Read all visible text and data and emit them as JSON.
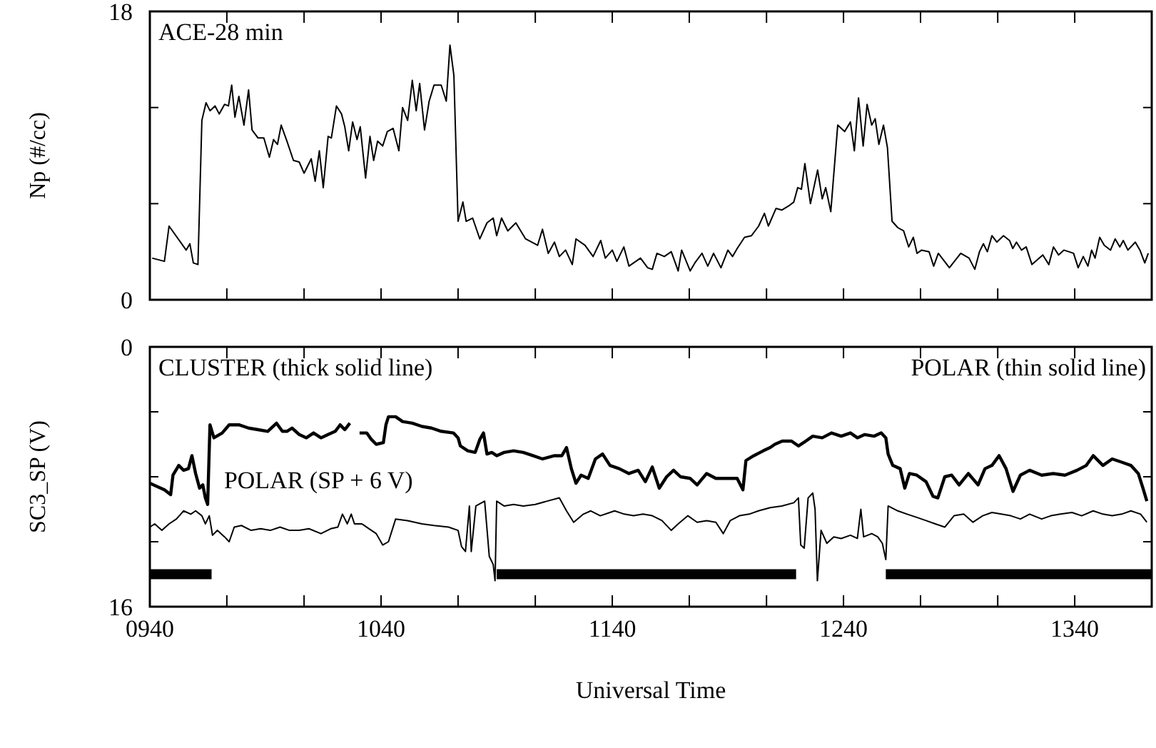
{
  "chart_data": [
    {
      "type": "line",
      "ylabel": "Np (#/cc)",
      "annotations": [
        "ACE-28 min"
      ],
      "x": [
        941,
        946.3,
        948.3,
        955.7,
        957.3,
        958.8,
        960.8,
        962.5,
        964.3,
        966,
        968.2,
        970,
        972.3,
        974,
        975.4,
        976.8,
        978.5,
        980.7,
        982.7,
        984.2,
        986.8,
        989.3,
        991.7,
        993.5,
        995.2,
        996.8,
        999.3,
        1002.1,
        1004.6,
        1006.7,
        1009.8,
        1011.5,
        1013.3,
        1015,
        1017.1,
        1018.5,
        1020.7,
        1022.9,
        1024.3,
        1026,
        1027.7,
        1029.6,
        1031,
        1033.3,
        1035.2,
        1036.8,
        1038.5,
        1040.7,
        1042.7,
        1045.2,
        1047.7,
        1049.3,
        1051.5,
        1053.5,
        1055.2,
        1056.7,
        1058.8,
        1060.8,
        1062.9,
        1066,
        1068.2,
        1069.8,
        1071.5,
        1073.3,
        1075.4,
        1076.8,
        1079.6,
        1082.7,
        1085.8,
        1088.5,
        1090,
        1092.1,
        1094.8,
        1098.3,
        1102.5,
        1107.7,
        1109.8,
        1112.3,
        1115,
        1117.1,
        1119.8,
        1122.7,
        1124.3,
        1128.2,
        1131.7,
        1135,
        1137,
        1140,
        1142,
        1145,
        1147.2,
        1152.2,
        1155.3,
        1157.3,
        1159.3,
        1162.5,
        1165.5,
        1168.5,
        1170,
        1173.7,
        1175.7,
        1178.8,
        1181.3,
        1183.8,
        1187,
        1190,
        1192,
        1194,
        1197.2,
        1200.2,
        1203.3,
        1205.8,
        1207.5,
        1210.8,
        1213.3,
        1216.7,
        1218.5,
        1220.2,
        1221.8,
        1223.3,
        1225.7,
        1228.8,
        1230.8,
        1232.3,
        1234.5,
        1237.5,
        1240.5,
        1243,
        1244.7,
        1246.5,
        1248.5,
        1250.2,
        1252.2,
        1253.7,
        1255.3,
        1257.3,
        1259,
        1261,
        1263.5,
        1266,
        1268.2,
        1270.2,
        1271.8,
        1273.8,
        1277,
        1279,
        1281,
        1285.8,
        1290.7,
        1294.3,
        1296.8,
        1298.8,
        1300.5,
        1302.2,
        1304.2,
        1306.3,
        1309.2,
        1311.8,
        1313.2,
        1314.8,
        1317,
        1319,
        1321.5,
        1326.2,
        1328.8,
        1330.8,
        1333,
        1335.3,
        1339.5,
        1341.5,
        1343.7,
        1345.7,
        1347.3,
        1348.8,
        1350.8,
        1352.8,
        1355.5,
        1357.5,
        1359.5,
        1361,
        1363,
        1366.2,
        1368.2,
        1370.3,
        1371.8
      ],
      "values": [
        2.6,
        2.4,
        4.6,
        3.1,
        3.5,
        2.3,
        2.2,
        11.2,
        12.3,
        11.8,
        12.1,
        11.6,
        12.2,
        12.1,
        13.4,
        11.4,
        12.7,
        10.9,
        13.1,
        10.6,
        10.1,
        10.1,
        8.9,
        10,
        9.7,
        10.9,
        9.9,
        8.7,
        8.6,
        7.9,
        8.8,
        7.4,
        9.3,
        7,
        10.2,
        10.1,
        12.1,
        11.6,
        10.8,
        9.3,
        11.1,
        10,
        10.8,
        7.6,
        10.2,
        8.7,
        9.9,
        9.6,
        10.5,
        10.7,
        9.3,
        12,
        11.2,
        13.7,
        11.8,
        13.5,
        10.6,
        12.4,
        13.4,
        13.4,
        12.4,
        15.9,
        14,
        4.9,
        6.1,
        4.9,
        5.1,
        3.8,
        4.8,
        5.1,
        4,
        5.1,
        4.3,
        4.8,
        3.8,
        3.4,
        4.4,
        2.9,
        3.6,
        2.7,
        3.1,
        2.2,
        3.8,
        3.4,
        2.7,
        3.7,
        2.6,
        3.1,
        2.4,
        3.3,
        2.1,
        2.6,
        2,
        1.9,
        2.9,
        2.7,
        3,
        1.8,
        3.1,
        1.8,
        2.3,
        2.9,
        2.1,
        2.9,
        2,
        3.1,
        2.7,
        3.2,
        3.9,
        4,
        4.6,
        5.4,
        4.6,
        5.7,
        5.6,
        5.9,
        6.1,
        7,
        6.9,
        8.5,
        6,
        8.1,
        6.3,
        7,
        5.5,
        10.9,
        10.5,
        11.1,
        9.3,
        12.6,
        9.6,
        12.2,
        10.9,
        11.3,
        9.7,
        10.9,
        9.5,
        4.9,
        4.5,
        4.3,
        3.3,
        3.9,
        2.9,
        3.1,
        3,
        2.1,
        2.9,
        2,
        2.9,
        2.6,
        1.9,
        3,
        3.5,
        3,
        4,
        3.6,
        4,
        3.7,
        3.2,
        3.6,
        3.1,
        3.3,
        2.2,
        2.8,
        2.2,
        3.3,
        2.8,
        3.1,
        2.9,
        2,
        2.7,
        2.1,
        3.1,
        2.6,
        3.9,
        3.4,
        3.1,
        3.8,
        3.3,
        3.7,
        3.1,
        3.6,
        3.1,
        2.3,
        2.9
      ],
      "color": "#000000",
      "xlim": [
        940,
        1373.3
      ],
      "xticks": [
        {
          "value": 940,
          "label": null
        },
        {
          "value": 973.3,
          "label": null
        },
        {
          "value": 1006.7,
          "label": null
        },
        {
          "value": 1040,
          "label": null
        },
        {
          "value": 1073.3,
          "label": null
        },
        {
          "value": 1106.7,
          "label": null
        },
        {
          "value": 1140,
          "label": null
        },
        {
          "value": 1173.3,
          "label": null
        },
        {
          "value": 1206.7,
          "label": null
        },
        {
          "value": 1240,
          "label": null
        },
        {
          "value": 1273.3,
          "label": null
        },
        {
          "value": 1306.7,
          "label": null
        },
        {
          "value": 1340,
          "label": null
        }
      ],
      "ylim": [
        0,
        18
      ],
      "yticks": [
        0,
        {
          "value": 6,
          "label": null
        },
        {
          "value": 12,
          "label": null
        },
        18
      ],
      "tick_labels": "y"
    },
    {
      "type": "line",
      "ylabel": "SC3_SP (V)",
      "xlabel": "Universal Time",
      "annotations": [
        "CLUSTER (thick solid line)",
        "POLAR (thin solid line)",
        "POLAR (SP + 6 V)"
      ],
      "series": [
        {
          "color": "#000000",
          "x": [
            940,
            943.2,
            946.3,
            949,
            950,
            952.5,
            954.6,
            956.7,
            958.2,
            959.8,
            961.5,
            962.9,
            964,
            965,
            966,
            967.7,
            971.3,
            974.3,
            978.5,
            982.7,
            986.8,
            991,
            994.8,
            997.3,
            999.3,
            1001.5,
            1004.6,
            1007.7,
            1010.8,
            1014,
            1017.1,
            1020.2,
            1022.3,
            1024.3,
            1026.5,
            1028.3,
            1030.7,
            1033.8,
            1035.8,
            1037.9,
            1041,
            1042.1,
            1043.2,
            1046.3,
            1049.3,
            1053.5,
            1057.7,
            1061.8,
            1066,
            1071.3,
            1073.3,
            1074.3,
            1077.5,
            1080.7,
            1082.7,
            1084.3,
            1085.8,
            1087.9,
            1090,
            1093.2,
            1097.3,
            1101.5,
            1105.7,
            1109.8,
            1115,
            1118.2,
            1120.2,
            1122.3,
            1124.3,
            1126.5,
            1129.6,
            1132.7,
            1135.8,
            1139,
            1143,
            1147.2,
            1151.2,
            1154.3,
            1157.3,
            1160.3,
            1163.5,
            1166.5,
            1169.5,
            1173.7,
            1176.7,
            1180.8,
            1184.8,
            1190,
            1194,
            1196.5,
            1197.8,
            1201.2,
            1205.3,
            1208.3,
            1210.3,
            1213.5,
            1217.5,
            1220.5,
            1222.7,
            1226.7,
            1230.8,
            1234.8,
            1239,
            1243,
            1246,
            1249.2,
            1253.2,
            1256.3,
            1258.3,
            1259.3,
            1261.3,
            1264.5,
            1266.5,
            1268.5,
            1271.7,
            1275.7,
            1278.7,
            1280.8,
            1283.8,
            1286.8,
            1290,
            1294,
            1298.2,
            1301.2,
            1304.2,
            1307.3,
            1310.3,
            1313.3,
            1316.5,
            1320.5,
            1325.7,
            1330.7,
            1335.8,
            1341,
            1345,
            1348,
            1352.2,
            1356.2,
            1360.3,
            1364.3,
            1367.5,
            1369.5,
            1371.2
          ],
          "values": [
            8.4,
            8.6,
            8.8,
            9.1,
            7.9,
            7.3,
            7.6,
            7.5,
            6.7,
            7.8,
            8.7,
            8.5,
            9.3,
            9.7,
            4.8,
            5.6,
            5.3,
            4.8,
            4.8,
            5,
            5.1,
            5.2,
            4.7,
            5.2,
            5.2,
            5,
            5.4,
            5.6,
            5.3,
            5.6,
            5.4,
            5.2,
            4.8,
            5.1,
            4.7,
            null,
            5.3,
            5.3,
            5.7,
            6,
            5.9,
            4.8,
            4.3,
            4.3,
            4.6,
            4.7,
            4.9,
            5,
            5.2,
            5.3,
            5.6,
            6.1,
            6.4,
            6.5,
            5.7,
            5.3,
            6.6,
            6.5,
            6.7,
            6.5,
            6.4,
            6.5,
            6.7,
            6.9,
            6.7,
            6.7,
            6.2,
            7.5,
            8.4,
            7.9,
            8.1,
            6.9,
            6.6,
            7.3,
            7.5,
            7.8,
            7.6,
            8.3,
            7.4,
            8.7,
            8,
            7.6,
            8,
            8.1,
            8.5,
            7.8,
            8.1,
            8.1,
            8.1,
            8.8,
            7,
            6.7,
            6.4,
            6.2,
            6,
            5.8,
            5.8,
            6.1,
            5.9,
            5.5,
            5.6,
            5.3,
            5.5,
            5.3,
            5.6,
            5.4,
            5.5,
            5.3,
            5.6,
            6.6,
            7.3,
            7.5,
            8.7,
            7.8,
            7.9,
            8.3,
            9.2,
            9.3,
            8,
            7.9,
            8.5,
            7.8,
            8.5,
            7.5,
            7.3,
            6.7,
            7.5,
            8.9,
            7.9,
            7.6,
            7.9,
            7.8,
            7.9,
            7.6,
            7.3,
            6.7,
            7.3,
            6.9,
            7.1,
            7.3,
            7.8,
            8.7,
            9.5
          ]
        },
        {
          "color": "#000000",
          "x": [
            940,
            942.1,
            945.2,
            948.3,
            951.5,
            954.6,
            957.7,
            959.8,
            962.5,
            964,
            965.7,
            967.1,
            969.2,
            972.3,
            974.3,
            976.5,
            979.6,
            983.8,
            987.9,
            992.1,
            996.3,
            1000.4,
            1004.6,
            1008.8,
            1014,
            1018.2,
            1021.3,
            1023.3,
            1025.4,
            1027.1,
            1028.5,
            1031.7,
            1034.8,
            1037.9,
            1040.7,
            1043.2,
            1046.3,
            1051.5,
            1057.7,
            1062.9,
            1069.2,
            1073.3,
            1074.8,
            1076.5,
            1078.2,
            1079,
            1081,
            1084.8,
            1086.8,
            1088.5,
            1089.3,
            1090,
            1093.2,
            1097.3,
            1101.5,
            1106.7,
            1111.8,
            1117.1,
            1120.2,
            1123.3,
            1127.5,
            1130.7,
            1134.8,
            1139,
            1141,
            1145.2,
            1149.2,
            1153.3,
            1157.3,
            1161.5,
            1165.5,
            1168.5,
            1172.7,
            1176.7,
            1180.8,
            1184.8,
            1188,
            1191,
            1195,
            1199.2,
            1203.2,
            1208.3,
            1213.3,
            1218.5,
            1220.5,
            1221.5,
            1223,
            1224.7,
            1226.7,
            1227.7,
            1228.7,
            1230.3,
            1232.8,
            1235.8,
            1239,
            1243,
            1246,
            1247.5,
            1248.7,
            1252.2,
            1254.8,
            1256.8,
            1258.3,
            1259.3,
            1263.5,
            1267.5,
            1271.7,
            1275.7,
            1279.7,
            1283.8,
            1287.8,
            1292,
            1296,
            1300.2,
            1304.2,
            1308.3,
            1312.3,
            1316.5,
            1320.5,
            1325.7,
            1329.7,
            1333.8,
            1338.8,
            1343,
            1348,
            1352.2,
            1356.2,
            1360.3,
            1364.3,
            1368.5,
            1371.2
          ],
          "values": [
            11.1,
            10.9,
            11.3,
            10.9,
            10.6,
            10.1,
            10.3,
            10.1,
            10.4,
            10.9,
            10.4,
            11.6,
            11.3,
            11.7,
            12,
            11.1,
            11,
            11.3,
            11.2,
            11.3,
            11.1,
            11.3,
            11.3,
            11.2,
            11.5,
            11.2,
            11.1,
            10.3,
            10.9,
            10.3,
            10.9,
            10.9,
            11.2,
            11.5,
            12.2,
            12,
            10.6,
            10.7,
            10.9,
            11,
            11.1,
            11.3,
            12.3,
            12.6,
            9.8,
            12.6,
            9.8,
            9.5,
            12.9,
            13.4,
            14.4,
            9.5,
            9.8,
            9.7,
            9.8,
            9.7,
            9.5,
            9.3,
            10.1,
            10.8,
            10.3,
            10.1,
            10.4,
            10.2,
            10.1,
            10.3,
            10.4,
            10.3,
            10.4,
            10.7,
            11.3,
            10.9,
            10.4,
            10.8,
            10.7,
            10.8,
            11.5,
            10.7,
            10.4,
            10.3,
            10.1,
            9.9,
            9.8,
            9.6,
            9.3,
            12.2,
            12.4,
            9.3,
            9,
            10,
            14.4,
            11.3,
            12.1,
            11.7,
            11.8,
            11.6,
            11.8,
            10,
            11.7,
            11.5,
            11.7,
            12.1,
            13.1,
            9.8,
            10.1,
            10.3,
            10.5,
            10.7,
            10.9,
            11.1,
            10.4,
            10.3,
            10.8,
            10.4,
            10.2,
            10.3,
            10.4,
            10.6,
            10.3,
            10.6,
            10.4,
            10.3,
            10.2,
            10.4,
            10.1,
            10.3,
            10.4,
            10.3,
            10.1,
            10.3,
            10.8
          ]
        },
        {
          "color": "#000000",
          "x": [
            940,
            966.7,
            968.3,
            1090,
            1219.5,
            1220,
            1258.3,
            1373.3
          ],
          "values": [
            14,
            14,
            null,
            14,
            14,
            null,
            14,
            14
          ]
        }
      ],
      "xlim": [
        940,
        1373.3
      ],
      "xticks": [
        {
          "value": 940,
          "label": "0940"
        },
        {
          "value": 973.3,
          "label": null
        },
        {
          "value": 1006.7,
          "label": null
        },
        {
          "value": 1040,
          "label": "1040"
        },
        {
          "value": 1073.3,
          "label": null
        },
        {
          "value": 1106.7,
          "label": null
        },
        {
          "value": 1140,
          "label": "1140"
        },
        {
          "value": 1173.3,
          "label": null
        },
        {
          "value": 1206.7,
          "label": null
        },
        {
          "value": 1240,
          "label": "1240"
        },
        {
          "value": 1273.3,
          "label": null
        },
        {
          "value": 1306.7,
          "label": null
        },
        {
          "value": 1340,
          "label": "1340"
        }
      ],
      "ylim": [
        16,
        0
      ],
      "yticks": [
        0,
        {
          "value": 4,
          "label": null
        },
        {
          "value": 8,
          "label": null
        },
        {
          "value": 12,
          "label": null
        },
        16
      ]
    }
  ]
}
